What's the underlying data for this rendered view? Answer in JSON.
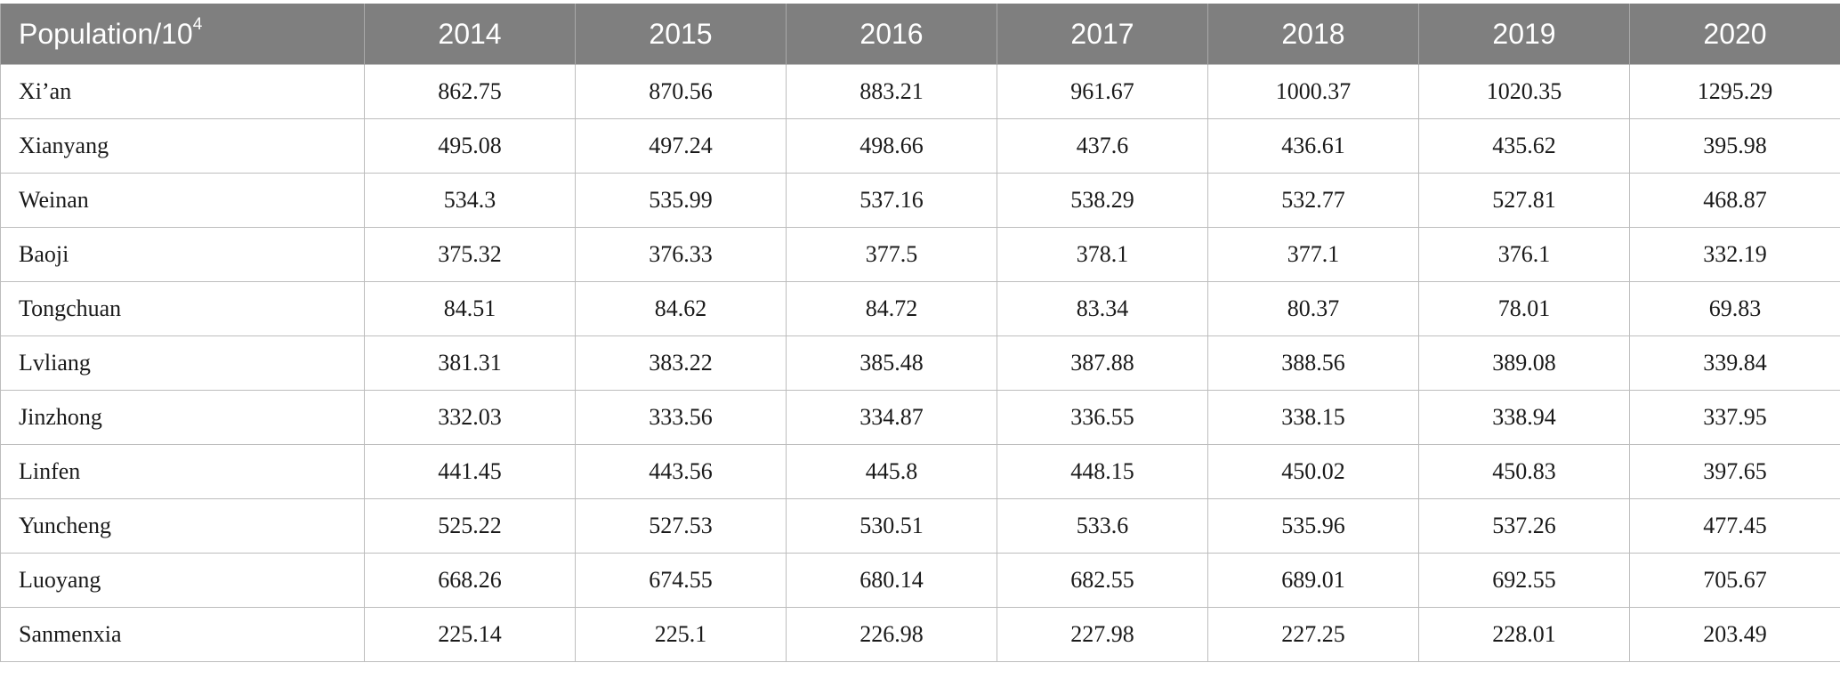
{
  "table": {
    "header": {
      "first_label": "Population/10",
      "first_sup": "4",
      "years": [
        "2014",
        "2015",
        "2016",
        "2017",
        "2018",
        "2019",
        "2020"
      ]
    },
    "rows": [
      {
        "city": "Xi’an",
        "values": [
          "862.75",
          "870.56",
          "883.21",
          "961.67",
          "1000.37",
          "1020.35",
          "1295.29"
        ]
      },
      {
        "city": "Xianyang",
        "values": [
          "495.08",
          "497.24",
          "498.66",
          "437.6",
          "436.61",
          "435.62",
          "395.98"
        ]
      },
      {
        "city": "Weinan",
        "values": [
          "534.3",
          "535.99",
          "537.16",
          "538.29",
          "532.77",
          "527.81",
          "468.87"
        ]
      },
      {
        "city": "Baoji",
        "values": [
          "375.32",
          "376.33",
          "377.5",
          "378.1",
          "377.1",
          "376.1",
          "332.19"
        ]
      },
      {
        "city": "Tongchuan",
        "values": [
          "84.51",
          "84.62",
          "84.72",
          "83.34",
          "80.37",
          "78.01",
          "69.83"
        ]
      },
      {
        "city": "Lvliang",
        "values": [
          "381.31",
          "383.22",
          "385.48",
          "387.88",
          "388.56",
          "389.08",
          "339.84"
        ]
      },
      {
        "city": "Jinzhong",
        "values": [
          "332.03",
          "333.56",
          "334.87",
          "336.55",
          "338.15",
          "338.94",
          "337.95"
        ]
      },
      {
        "city": "Linfen",
        "values": [
          "441.45",
          "443.56",
          "445.8",
          "448.15",
          "450.02",
          "450.83",
          "397.65"
        ]
      },
      {
        "city": "Yuncheng",
        "values": [
          "525.22",
          "527.53",
          "530.51",
          "533.6",
          "535.96",
          "537.26",
          "477.45"
        ]
      },
      {
        "city": "Luoyang",
        "values": [
          "668.26",
          "674.55",
          "680.14",
          "682.55",
          "689.01",
          "692.55",
          "705.67"
        ]
      },
      {
        "city": "Sanmenxia",
        "values": [
          "225.14",
          "225.1",
          "226.98",
          "227.98",
          "227.25",
          "228.01",
          "203.49"
        ]
      }
    ]
  }
}
